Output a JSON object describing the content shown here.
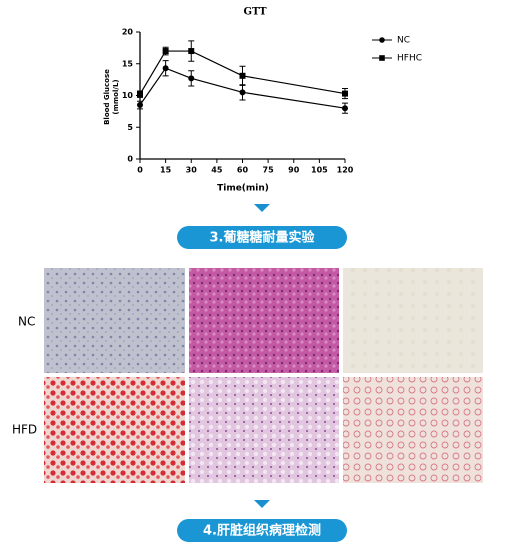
{
  "chart_data": {
    "type": "line",
    "title": "GTT",
    "xlabel": "Time(min)",
    "ylabel": [
      "Blood Glucose",
      "(mmol/L)"
    ],
    "x": [
      0,
      15,
      30,
      60,
      120
    ],
    "series": [
      {
        "name": "NC",
        "color": "#000000",
        "marker": "circle",
        "values": [
          8.5,
          14.3,
          12.7,
          10.5,
          8.0
        ],
        "errors": [
          0.6,
          1.2,
          1.2,
          1.2,
          0.8
        ]
      },
      {
        "name": "HFHC",
        "color": "#000000",
        "marker": "square",
        "values": [
          10.2,
          17.0,
          17.0,
          13.1,
          10.3
        ],
        "errors": [
          0.5,
          0.6,
          1.6,
          1.5,
          0.8
        ]
      }
    ],
    "xlim": [
      0,
      120
    ],
    "xticks": [
      0,
      15,
      30,
      45,
      60,
      75,
      90,
      105,
      120
    ],
    "ylim": [
      0,
      20
    ],
    "yticks": [
      0,
      5,
      10,
      15,
      20
    ],
    "legend": "right"
  },
  "steps": [
    "3.葡糖糖耐量实验",
    "4.肝脏组织病理检测"
  ],
  "panels": {
    "rows": [
      "NC",
      "HFD"
    ]
  }
}
